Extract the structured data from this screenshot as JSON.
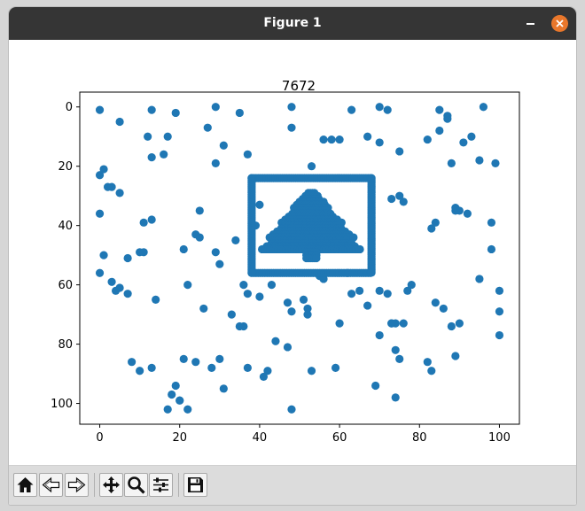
{
  "window": {
    "title": "Figure 1"
  },
  "toolbar": {
    "icons": [
      "home-icon",
      "back-icon",
      "forward-icon",
      "pan-icon",
      "zoom-icon",
      "configure-icon",
      "save-icon"
    ]
  },
  "colors": {
    "marker": "#1f77b4",
    "titlebar": "#353535",
    "close": "#e9772b"
  },
  "chart_data": {
    "type": "scatter",
    "title": "7672",
    "xlabel": "",
    "ylabel": "",
    "xlim": [
      -5,
      105
    ],
    "ylim": [
      107,
      -5
    ],
    "y_inverted": true,
    "xticks": [
      0,
      20,
      40,
      60,
      80,
      100
    ],
    "yticks": [
      0,
      20,
      40,
      60,
      80,
      100
    ],
    "grid": false,
    "series": [
      {
        "x": [
          0,
          13,
          29,
          48,
          35,
          63,
          70,
          72,
          85,
          87,
          87,
          96,
          5,
          12,
          17,
          27,
          19,
          31,
          48,
          56,
          58,
          60,
          67,
          70,
          75,
          82,
          85,
          91,
          93,
          88,
          95,
          99,
          13,
          16,
          29,
          37,
          53,
          0,
          1,
          2,
          3,
          5,
          0,
          11,
          25,
          34,
          39,
          40,
          73,
          75,
          76,
          83,
          84,
          89,
          90,
          92,
          98,
          1,
          0,
          7,
          10,
          11,
          13,
          3,
          4,
          5,
          7,
          14,
          21,
          22,
          24,
          25,
          26,
          29,
          30,
          33,
          35,
          36,
          40,
          43,
          47,
          48,
          51,
          52,
          55,
          56,
          62,
          63,
          65,
          67,
          70,
          72,
          73,
          74,
          76,
          77,
          78,
          84,
          86,
          89,
          95,
          98,
          100,
          100,
          100,
          36,
          37,
          44,
          53,
          59,
          60,
          70,
          73,
          75,
          82,
          83,
          90,
          88,
          89,
          69,
          74,
          74,
          8,
          10,
          13,
          18,
          19,
          20,
          21,
          24,
          28,
          30,
          31,
          37,
          41,
          42,
          47,
          52,
          48,
          17,
          20,
          22
        ],
        "y": [
          1,
          1,
          0,
          0,
          2,
          1,
          0,
          1,
          1,
          3,
          4,
          0,
          5,
          10,
          10,
          7,
          2,
          13,
          7,
          11,
          11,
          11,
          10,
          12,
          15,
          11,
          8,
          12,
          10,
          19,
          18,
          19,
          17,
          16,
          19,
          16,
          20,
          23,
          21,
          27,
          27,
          29,
          36,
          39,
          35,
          45,
          40,
          33,
          31,
          30,
          32,
          41,
          39,
          35,
          35,
          36,
          39,
          50,
          56,
          51,
          49,
          49,
          38,
          59,
          62,
          61,
          63,
          65,
          48,
          60,
          43,
          44,
          68,
          49,
          53,
          70,
          74,
          60,
          64,
          60,
          66,
          69,
          65,
          68,
          57,
          58,
          56,
          63,
          62,
          67,
          62,
          63,
          73,
          73,
          73,
          62,
          60,
          66,
          68,
          34,
          58,
          48,
          62,
          69,
          77,
          74,
          63,
          79,
          89,
          88,
          73,
          77,
          73,
          85,
          86,
          89,
          73,
          74,
          84,
          94,
          98,
          82,
          86,
          89,
          88,
          97,
          94,
          99,
          85,
          86,
          88,
          85,
          95,
          88,
          91,
          89,
          81,
          70,
          102,
          102,
          99,
          102
        ]
      }
    ],
    "inner_frame": {
      "x_range": [
        38,
        68
      ],
      "y_range": [
        24,
        56
      ]
    },
    "tree": {
      "x_center": 53,
      "rows": [
        {
          "y": 29,
          "half": 0.8
        },
        {
          "y": 30,
          "half": 1.5
        },
        {
          "y": 31,
          "half": 2.2
        },
        {
          "y": 32,
          "half": 3.0
        },
        {
          "y": 33,
          "half": 3.7
        },
        {
          "y": 34,
          "half": 4.4
        },
        {
          "y": 35,
          "half": 3.8
        },
        {
          "y": 36,
          "half": 4.8
        },
        {
          "y": 37,
          "half": 5.7
        },
        {
          "y": 38,
          "half": 6.6
        },
        {
          "y": 39,
          "half": 7.5
        },
        {
          "y": 40,
          "half": 6.5
        },
        {
          "y": 41,
          "half": 7.6
        },
        {
          "y": 42,
          "half": 8.6
        },
        {
          "y": 43,
          "half": 9.6
        },
        {
          "y": 44,
          "half": 10.5
        },
        {
          "y": 45,
          "half": 8.8
        },
        {
          "y": 46,
          "half": 10.0
        },
        {
          "y": 47,
          "half": 11.2
        },
        {
          "y": 48,
          "half": 12.4
        },
        {
          "y": 49,
          "half": 1.3
        },
        {
          "y": 50,
          "half": 1.3
        },
        {
          "y": 51,
          "half": 1.3
        }
      ]
    }
  }
}
